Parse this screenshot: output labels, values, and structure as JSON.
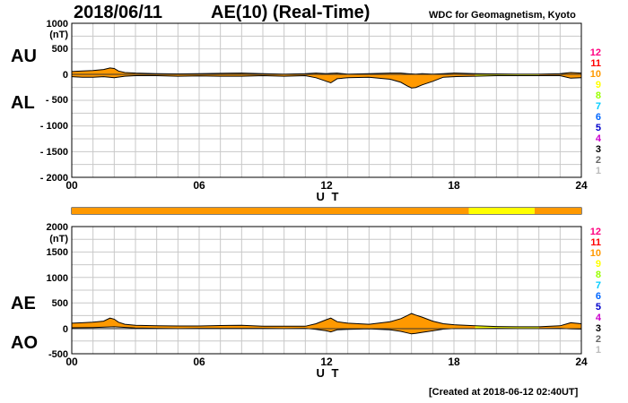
{
  "header": {
    "date": "2018/06/11",
    "title": "AE(10) (Real-Time)",
    "source": "WDC for Geomagnetism, Kyoto"
  },
  "footer": {
    "created": "[Created at 2018-06-12 02:40UT]"
  },
  "side_labels": {
    "top_upper": "AU",
    "top_lower": "AL",
    "bottom_upper": "AE",
    "bottom_lower": "AO"
  },
  "station_scale": {
    "labels": [
      "12",
      "11",
      "10",
      "9",
      "8",
      "7",
      "6",
      "5",
      "4",
      "3",
      "2",
      "1"
    ],
    "colors": [
      "#ff0080",
      "#ff0000",
      "#ff9900",
      "#ffff00",
      "#99ff00",
      "#00ccff",
      "#0066ff",
      "#0000cc",
      "#cc00cc",
      "#000000",
      "#666666",
      "#bbbbbb"
    ]
  },
  "chart_data": [
    {
      "type": "area",
      "unit_label": "(nT)",
      "xlabel": "U T",
      "x_ticks": [
        "00",
        "06",
        "12",
        "18",
        "24"
      ],
      "y_ticks": [
        "1000",
        "500",
        "0",
        "- 500",
        "- 1000",
        "- 1500",
        "- 2000"
      ],
      "ylim": [
        -2000,
        1000
      ],
      "xlim": [
        0,
        24
      ],
      "grid": true,
      "fill_color": "#ff9900",
      "late_fill_color": "#ffff00",
      "late_fill_start_hour": 18.7,
      "series": [
        {
          "x": [
            0,
            0.5,
            1,
            1.5,
            1.8,
            2,
            2.2,
            2.5,
            3,
            4,
            5,
            6,
            7,
            8,
            9,
            10,
            11,
            11.5,
            12,
            12.2,
            12.5,
            13,
            14,
            15,
            15.5,
            15.8,
            16,
            16.2,
            16.5,
            17,
            17.5,
            18,
            19,
            20,
            21,
            22,
            23,
            23.5,
            24
          ],
          "values": [
            60,
            70,
            80,
            100,
            130,
            120,
            70,
            40,
            30,
            20,
            15,
            20,
            25,
            30,
            20,
            10,
            20,
            30,
            20,
            25,
            30,
            10,
            20,
            30,
            30,
            20,
            15,
            10,
            20,
            10,
            20,
            30,
            20,
            15,
            10,
            10,
            20,
            40,
            30
          ]
        },
        {
          "x": [
            0,
            0.5,
            1,
            1.5,
            2,
            2.5,
            3,
            4,
            5,
            6,
            7,
            8,
            9,
            10,
            11,
            11.5,
            12,
            12.2,
            12.5,
            13,
            14,
            15,
            15.5,
            15.8,
            16,
            16.2,
            16.5,
            17,
            17.5,
            18,
            19,
            20,
            21,
            22,
            23,
            23.5,
            24
          ],
          "values": [
            -40,
            -50,
            -50,
            -40,
            -60,
            -30,
            -20,
            -20,
            -30,
            -25,
            -30,
            -30,
            -20,
            -30,
            -20,
            -60,
            -130,
            -160,
            -80,
            -60,
            -50,
            -90,
            -150,
            -220,
            -260,
            -250,
            -200,
            -130,
            -50,
            -40,
            -30,
            -20,
            -20,
            -20,
            -20,
            -70,
            -60
          ]
        }
      ]
    },
    {
      "type": "area",
      "unit_label": "(nT)",
      "xlabel": "U T",
      "x_ticks": [
        "00",
        "06",
        "12",
        "18",
        "24"
      ],
      "y_ticks": [
        "2000",
        "(nT)",
        "1500",
        "1000",
        "500",
        "0",
        "-500"
      ],
      "ylim": [
        -500,
        2000
      ],
      "xlim": [
        0,
        24
      ],
      "grid": true,
      "fill_color": "#ff9900",
      "late_fill_color": "#ffff00",
      "late_fill_start_hour": 18.7,
      "series": [
        {
          "x": [
            0,
            0.5,
            1,
            1.5,
            1.8,
            2,
            2.2,
            2.5,
            3,
            4,
            5,
            6,
            7,
            8,
            9,
            10,
            11,
            11.5,
            12,
            12.2,
            12.5,
            13,
            14,
            15,
            15.5,
            15.8,
            16,
            16.2,
            16.5,
            17,
            17.5,
            18,
            19,
            20,
            21,
            22,
            23,
            23.5,
            24
          ],
          "values": [
            100,
            110,
            120,
            140,
            200,
            180,
            120,
            80,
            60,
            50,
            45,
            45,
            55,
            60,
            40,
            40,
            40,
            90,
            170,
            200,
            130,
            100,
            80,
            130,
            190,
            250,
            290,
            260,
            220,
            140,
            90,
            70,
            50,
            35,
            30,
            30,
            50,
            110,
            90
          ]
        },
        {
          "x": [
            0,
            1,
            2,
            3,
            4,
            5,
            6,
            7,
            8,
            9,
            10,
            11,
            11.5,
            12,
            12.2,
            12.5,
            13,
            14,
            15,
            15.5,
            15.8,
            16,
            16.2,
            16.5,
            17,
            17.5,
            18,
            19,
            20,
            21,
            22,
            23,
            23.5,
            24
          ],
          "values": [
            10,
            15,
            30,
            5,
            0,
            -5,
            0,
            0,
            0,
            0,
            -5,
            0,
            -20,
            -50,
            -70,
            -30,
            -20,
            -10,
            -30,
            -60,
            -90,
            -110,
            -100,
            -80,
            -50,
            -15,
            -5,
            -5,
            0,
            -5,
            -5,
            0,
            -10,
            -15
          ]
        }
      ]
    }
  ],
  "station_bar": {
    "type": "status-strip",
    "segments": [
      {
        "start_hour": 0,
        "end_hour": 18.7,
        "color": "#ff9900"
      },
      {
        "start_hour": 18.7,
        "end_hour": 21.8,
        "color": "#ffff00"
      },
      {
        "start_hour": 21.8,
        "end_hour": 24,
        "color": "#ff9900"
      }
    ]
  }
}
